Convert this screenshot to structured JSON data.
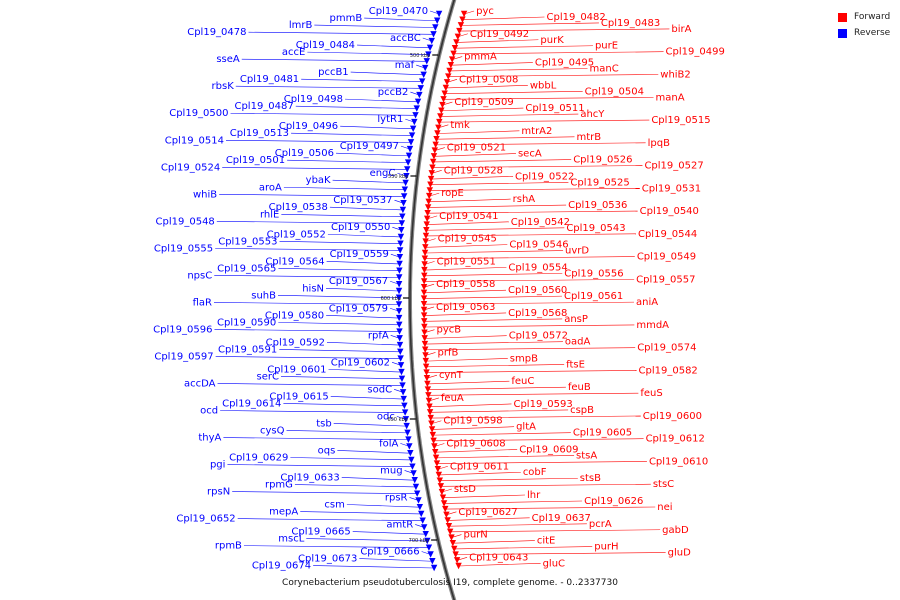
{
  "caption": "Corynebacterium pseudotuberculosis I19, complete genome. - 0..2337730",
  "legend": {
    "forward_label": "Forward",
    "reverse_label": "Reverse",
    "forward_color": "#ff0000",
    "reverse_color": "#0000ff"
  },
  "genome_ticks": [
    "500 kbp",
    "550 kbp",
    "600 kbp",
    "650 kbp",
    "700 kbp"
  ],
  "reverse_genes": [
    "Cpl19_0470",
    "pmmB",
    "lmrB",
    "Cpl19_0478",
    "accBC",
    "Cpl19_0484",
    "accE",
    "sseA",
    "maf",
    "pccB1",
    "Cpl19_0481",
    "rbsK",
    "pccB2",
    "Cpl19_0498",
    "Cpl19_0487",
    "Cpl19_0500",
    "lytR1",
    "Cpl19_0496",
    "Cpl19_0513",
    "Cpl19_0514",
    "Cpl19_0497",
    "Cpl19_0506",
    "Cpl19_0501",
    "Cpl19_0524",
    "engC",
    "ybaK",
    "aroA",
    "whiB",
    "Cpl19_0537",
    "Cpl19_0538",
    "rhlE",
    "Cpl19_0548",
    "Cpl19_0550",
    "Cpl19_0552",
    "Cpl19_0553",
    "Cpl19_0555",
    "Cpl19_0559",
    "Cpl19_0564",
    "Cpl19_0565",
    "npsC",
    "Cpl19_0567",
    "hisN",
    "suhB",
    "flaR",
    "Cpl19_0579",
    "Cpl19_0580",
    "Cpl19_0590",
    "Cpl19_0596",
    "rpfA",
    "Cpl19_0592",
    "Cpl19_0591",
    "Cpl19_0597",
    "Cpl19_0602",
    "Cpl19_0601",
    "serC",
    "accDA",
    "sodC",
    "Cpl19_0615",
    "Cpl19_0614",
    "ocd",
    "odc",
    "tsb",
    "cysQ",
    "thyA",
    "folA",
    "oqs",
    "Cpl19_0629",
    "pgi",
    "mug",
    "Cpl19_0633",
    "rpmG",
    "rpsN",
    "rpsR",
    "csm",
    "mepA",
    "Cpl19_0652",
    "amtR",
    "Cpl19_0665",
    "mscL",
    "rpmB",
    "Cpl19_0666",
    "Cpl19_0673",
    "Cpl19_0674"
  ],
  "forward_genes": [
    "pyc",
    "Cpl19_0482",
    "Cpl19_0483",
    "birA",
    "Cpl19_0492",
    "purK",
    "purE",
    "Cpl19_0499",
    "pmmA",
    "Cpl19_0495",
    "manC",
    "whiB2",
    "Cpl19_0508",
    "wbbL",
    "Cpl19_0504",
    "manA",
    "Cpl19_0509",
    "Cpl19_0511",
    "ahcY",
    "Cpl19_0515",
    "tmk",
    "mtrA2",
    "mtrB",
    "lpqB",
    "Cpl19_0521",
    "secA",
    "Cpl19_0526",
    "Cpl19_0527",
    "Cpl19_0528",
    "Cpl19_0522",
    "Cpl19_0525",
    "Cpl19_0531",
    "ropE",
    "rshA",
    "Cpl19_0536",
    "Cpl19_0540",
    "Cpl19_0541",
    "Cpl19_0542",
    "Cpl19_0543",
    "Cpl19_0544",
    "Cpl19_0545",
    "Cpl19_0546",
    "uvrD",
    "Cpl19_0549",
    "Cpl19_0551",
    "Cpl19_0554",
    "Cpl19_0556",
    "Cpl19_0557",
    "Cpl19_0558",
    "Cpl19_0560",
    "Cpl19_0561",
    "aniA",
    "Cpl19_0563",
    "Cpl19_0568",
    "ansP",
    "mmdA",
    "pycB",
    "Cpl19_0572",
    "oadA",
    "Cpl19_0574",
    "prfB",
    "smpB",
    "ftsE",
    "Cpl19_0582",
    "cynT",
    "feuC",
    "feuB",
    "feuS",
    "feuA",
    "Cpl19_0593",
    "cspB",
    "Cpl19_0600",
    "Cpl19_0598",
    "gltA",
    "Cpl19_0605",
    "Cpl19_0612",
    "Cpl19_0608",
    "Cpl19_0609",
    "stsA",
    "Cpl19_0610",
    "Cpl19_0611",
    "cobF",
    "stsB",
    "stsC",
    "stsD",
    "lhr",
    "Cpl19_0626",
    "nei",
    "Cpl19_0627",
    "Cpl19_0637",
    "pcrA",
    "gabD",
    "purN",
    "citE",
    "purH",
    "gluD",
    "Cpl19_0643",
    "gluC"
  ]
}
